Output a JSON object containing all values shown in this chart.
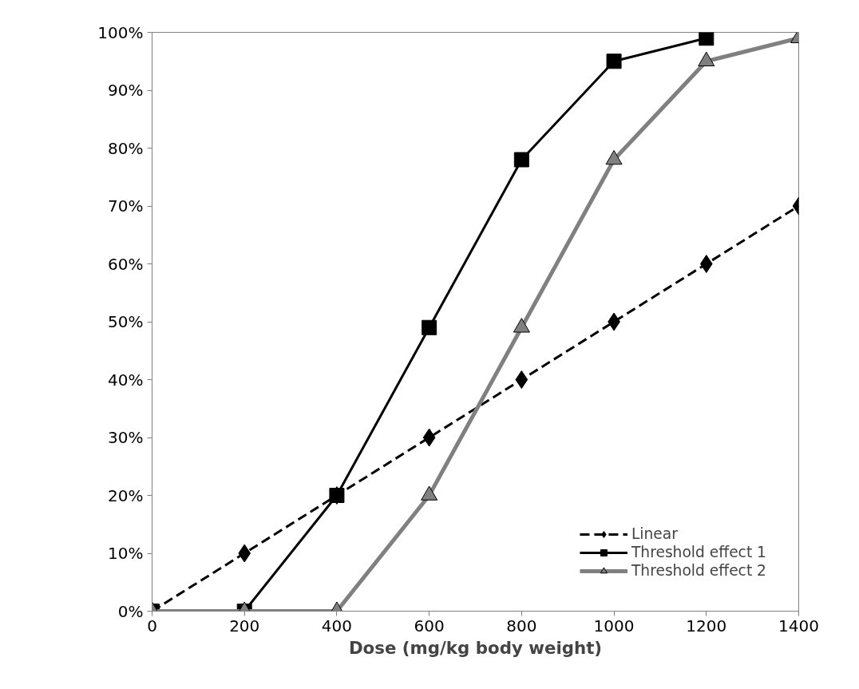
{
  "chart_data": {
    "type": "line",
    "xlabel": "Dose (mg/kg body weight)",
    "x": [
      0,
      200,
      400,
      600,
      800,
      1000,
      1200,
      1400
    ],
    "xlim": [
      0,
      1400
    ],
    "xticks": [
      0,
      200,
      400,
      600,
      800,
      1000,
      1200,
      1400
    ],
    "ylim": [
      0,
      100
    ],
    "yticks": [
      {
        "value": 0,
        "label": "0%"
      },
      {
        "value": 10,
        "label": "10%"
      },
      {
        "value": 20,
        "label": "20%"
      },
      {
        "value": 30,
        "label": "30%"
      },
      {
        "value": 40,
        "label": "40%"
      },
      {
        "value": 50,
        "label": "50%"
      },
      {
        "value": 60,
        "label": "60%"
      },
      {
        "value": 70,
        "label": "70%"
      },
      {
        "value": 80,
        "label": "80%"
      },
      {
        "value": 90,
        "label": "90%"
      },
      {
        "value": 100,
        "label": "100%"
      }
    ],
    "grid": false,
    "legend": "bottom right",
    "series": [
      {
        "name": "Linear",
        "color": "#000000",
        "marker": "diamond",
        "line_style": "dashed",
        "values": [
          0,
          10,
          20,
          30,
          40,
          50,
          60,
          70
        ]
      },
      {
        "name": "Threshold effect 1",
        "color": "#000000",
        "marker": "square",
        "line_style": "solid",
        "values": [
          0,
          0,
          20,
          49,
          78,
          95,
          99,
          null
        ]
      },
      {
        "name": "Threshold effect 2",
        "color": "#808080",
        "marker": "triangle",
        "line_style": "solid",
        "values": [
          0,
          0,
          0,
          20,
          49,
          78,
          95,
          99
        ]
      }
    ]
  }
}
